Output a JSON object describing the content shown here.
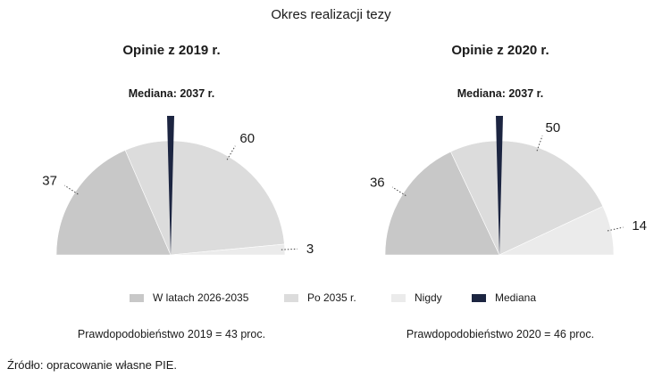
{
  "title": "Okres realizacji tezy",
  "colors": {
    "w_latach": "#c8c8c8",
    "po_2035": "#dcdcdc",
    "nigdy": "#ebebeb",
    "mediana": "#1c2541"
  },
  "legend": [
    {
      "label": "W latach 2026-2035",
      "color": "#c8c8c8"
    },
    {
      "label": "Po 2035 r.",
      "color": "#dcdcdc"
    },
    {
      "label": "Nigdy",
      "color": "#ebebeb"
    },
    {
      "label": "Mediana",
      "color": "#1c2541"
    }
  ],
  "chart_data": [
    {
      "type": "pie",
      "subtype": "semicircle",
      "title": "Opinie z 2019 r.",
      "median_label": "Mediana: 2037 r.",
      "probability": "Prawdopodobieństwo 2019 = 43 proc.",
      "categories": [
        "W latach 2026-2035",
        "Po 2035 r.",
        "Nigdy"
      ],
      "values": [
        37,
        60,
        3
      ],
      "labels": [
        "37",
        "60",
        "3"
      ],
      "median_position": 0.5
    },
    {
      "type": "pie",
      "subtype": "semicircle",
      "title": "Opinie z 2020 r.",
      "median_label": "Mediana: 2037 r.",
      "probability": "Prawdopodobieństwo 2020 = 46 proc.",
      "categories": [
        "W latach 2026-2035",
        "Po 2035 r.",
        "Nigdy"
      ],
      "values": [
        36,
        50,
        14
      ],
      "labels": [
        "36",
        "50",
        "14"
      ],
      "median_position": 0.5
    }
  ],
  "source": "Źródło: opracowanie własne PIE."
}
